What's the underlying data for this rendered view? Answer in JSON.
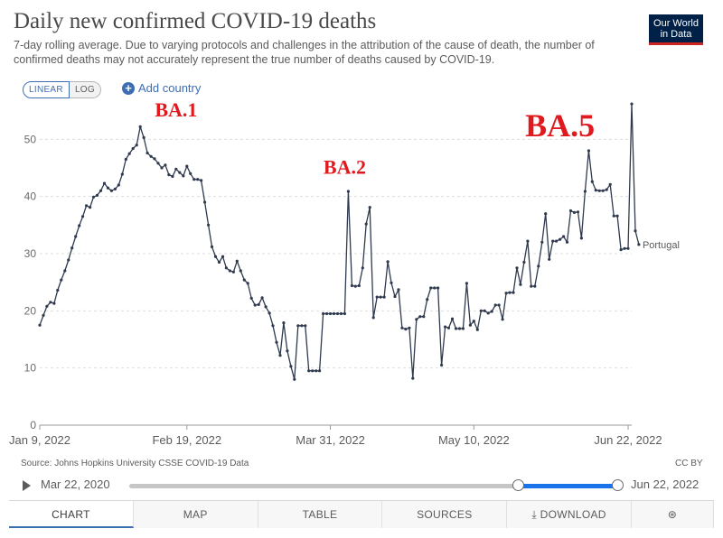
{
  "header": {
    "title": "Daily new confirmed COVID-19 deaths",
    "subtitle": "7-day rolling average. Due to varying protocols and challenges in the attribution of the cause of death, the number of confirmed deaths may not accurately represent the true number of deaths caused by COVID-19.",
    "logo_line1": "Our World",
    "logo_line2": "in Data"
  },
  "controls": {
    "linear_label": "LINEAR",
    "log_label": "LOG",
    "add_country_label": "Add country"
  },
  "chart_data": {
    "type": "line",
    "y_ticks": [
      0,
      10,
      20,
      30,
      40,
      50
    ],
    "ylim": [
      0,
      57
    ],
    "x_ticks": [
      {
        "label": "Jan 9, 2022",
        "day": 0
      },
      {
        "label": "Feb 19, 2022",
        "day": 41
      },
      {
        "label": "Mar 31, 2022",
        "day": 81
      },
      {
        "label": "May 10, 2022",
        "day": 121
      },
      {
        "label": "Jun 22, 2022",
        "day": 164
      }
    ],
    "xlim": [
      0,
      165
    ],
    "grid": true,
    "annotations": [
      {
        "text": "BA.1",
        "day": 38,
        "value": 54,
        "size": 22
      },
      {
        "text": "BA.2",
        "day": 85,
        "value": 44,
        "size": 22
      },
      {
        "text": "BA.5",
        "day": 145,
        "value": 50.5,
        "size": 36
      }
    ],
    "annotation_color": "#e0191f",
    "series": [
      {
        "name": "Portugal",
        "color": "#2f3a4e",
        "values": [
          17.5,
          19.2,
          20.8,
          21.5,
          21.3,
          23.6,
          25.4,
          27.0,
          28.9,
          31.0,
          33.0,
          34.9,
          36.5,
          38.4,
          38.1,
          39.9,
          40.2,
          41.0,
          42.3,
          41.5,
          41.0,
          41.3,
          42.0,
          43.9,
          46.5,
          47.5,
          48.4,
          49.0,
          52.2,
          50.3,
          47.6,
          47.0,
          46.6,
          45.8,
          45.0,
          45.5,
          43.8,
          43.5,
          44.8,
          44.2,
          43.6,
          45.3,
          44.0,
          43.0,
          43.0,
          42.8,
          39.0,
          35.0,
          31.2,
          29.5,
          28.5,
          29.5,
          27.5,
          27.0,
          26.8,
          28.7,
          27.0,
          25.4,
          24.8,
          22.2,
          21.0,
          21.1,
          22.3,
          20.7,
          19.6,
          17.4,
          14.5,
          12.2,
          17.9,
          13.0,
          10.3,
          8.0,
          17.4,
          17.4,
          17.4,
          9.5,
          9.5,
          9.5,
          9.5,
          19.5,
          19.5,
          19.5,
          19.5,
          19.5,
          19.5,
          19.5,
          40.9,
          24.4,
          24.3,
          24.4,
          27.5,
          35.2,
          38.1,
          18.8,
          22.4,
          22.4,
          22.4,
          28.6,
          24.9,
          22.5,
          23.7,
          17.0,
          16.8,
          17.0,
          8.2,
          18.5,
          19.0,
          19.0,
          22.0,
          24.0,
          24.0,
          24.0,
          10.5,
          17.2,
          17.0,
          18.6,
          16.9,
          16.9,
          16.9,
          24.8,
          17.5,
          18.2,
          16.7,
          20.0,
          20.0,
          19.6,
          19.9,
          21.0,
          21.0,
          18.5,
          23.1,
          23.2,
          23.2,
          27.5,
          24.6,
          28.5,
          32.2,
          24.3,
          24.3,
          27.8,
          32.0,
          37.0,
          29.0,
          32.2,
          32.2,
          32.5,
          33.0,
          32.0,
          37.5,
          37.2,
          37.3,
          32.7,
          40.9,
          48.0,
          42.6,
          41.1,
          41.0,
          41.0,
          41.2,
          42.1,
          36.6,
          36.6,
          30.7,
          30.9,
          30.9,
          56.2,
          34.0,
          31.6
        ]
      }
    ],
    "end_label": "Portugal"
  },
  "footer": {
    "source": "Source: Johns Hopkins University CSSE COVID-19 Data",
    "license": "CC BY",
    "timeline_start": "Mar 22, 2020",
    "timeline_end": "Jun 22, 2022",
    "timeline_range_fraction": [
      0.796,
      1.0
    ]
  },
  "tabs": {
    "chart": "CHART",
    "map": "MAP",
    "table": "TABLE",
    "sources": "SOURCES",
    "download": "DOWNLOAD"
  }
}
